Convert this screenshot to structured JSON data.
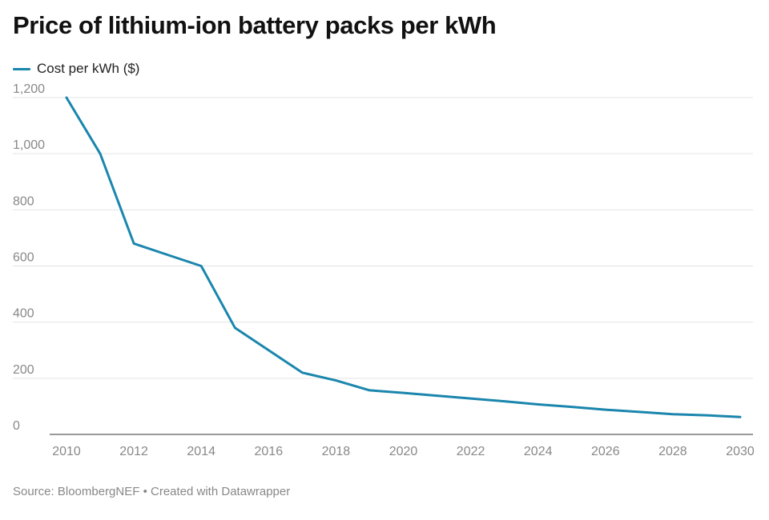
{
  "chart_data": {
    "type": "line",
    "title": "Price of lithium-ion battery packs per kWh",
    "xlabel": "",
    "ylabel": "",
    "x": [
      2010,
      2011,
      2012,
      2013,
      2014,
      2015,
      2016,
      2017,
      2018,
      2019,
      2020,
      2021,
      2022,
      2023,
      2024,
      2025,
      2026,
      2027,
      2028,
      2029,
      2030
    ],
    "series": [
      {
        "name": "Cost per kWh ($)",
        "color": "#1a86ad",
        "values": [
          1200,
          1000,
          680,
          640,
          600,
          380,
          300,
          220,
          192,
          157,
          148,
          138,
          128,
          118,
          107,
          98,
          88,
          80,
          72,
          68,
          62
        ]
      }
    ],
    "xlim": [
      2010,
      2030
    ],
    "ylim": [
      0,
      1200
    ],
    "x_ticks": [
      2010,
      2012,
      2014,
      2016,
      2018,
      2020,
      2022,
      2024,
      2026,
      2028,
      2030
    ],
    "y_ticks": [
      0,
      200,
      400,
      600,
      800,
      1000,
      1200
    ],
    "y_tick_labels": [
      "0",
      "200",
      "400",
      "600",
      "800",
      "1,000",
      "1,200"
    ],
    "grid": true,
    "legend_position": "top-left"
  },
  "footer": {
    "source": "Source: BloombergNEF • Created with Datawrapper"
  }
}
